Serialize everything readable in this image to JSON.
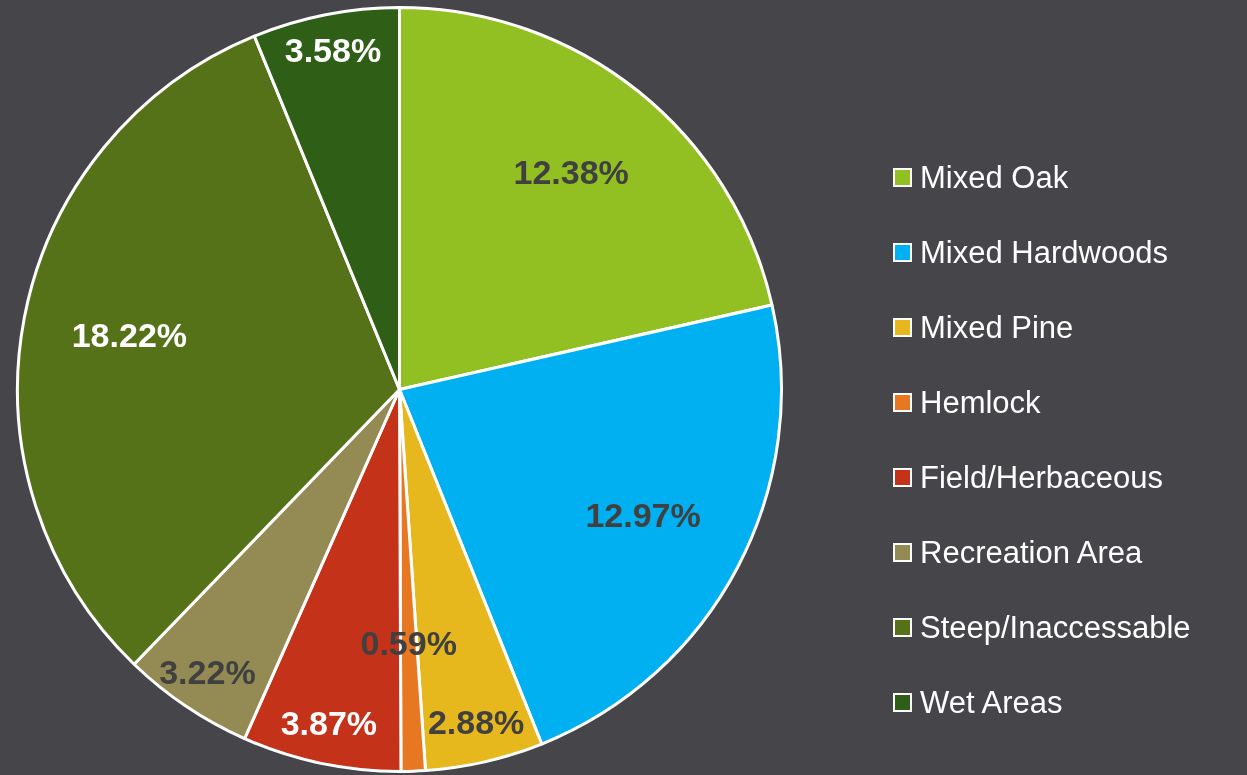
{
  "chart_data": {
    "type": "pie",
    "categories": [
      "Mixed Oak",
      "Mixed Hardwoods",
      "Mixed Pine",
      "Hemlock",
      "Field/Herbaceous",
      "Recreation Area",
      "Steep/Inaccessable",
      "Wet Areas"
    ],
    "values": [
      12.38,
      12.97,
      2.88,
      0.59,
      3.87,
      3.22,
      18.22,
      3.58
    ],
    "value_labels": [
      "12.38%",
      "12.97%",
      "2.88%",
      "0.59%",
      "3.87%",
      "3.22%",
      "18.22%",
      "3.58%"
    ],
    "colors": [
      "#92c022",
      "#00b0f0",
      "#e6b81e",
      "#e87722",
      "#c4321a",
      "#948a54",
      "#567219",
      "#2f5e16"
    ],
    "legend": "right"
  }
}
